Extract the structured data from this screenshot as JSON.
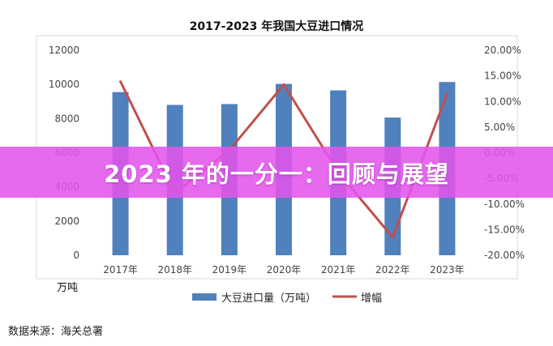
{
  "chart_data": {
    "type": "bar+line",
    "title": "2017-2023 年我国大豆进口情况",
    "categories": [
      "2017年",
      "2018年",
      "2019年",
      "2020年",
      "2021年",
      "2022年",
      "2023年"
    ],
    "series": [
      {
        "name": "大豆进口量（万吨）",
        "type": "bar",
        "axis": "left",
        "color": "#4F81BD",
        "values": [
          9550,
          8800,
          8850,
          10030,
          9650,
          8060,
          10140
        ]
      },
      {
        "name": "增幅",
        "type": "line",
        "axis": "right",
        "color": "#C0504D",
        "values": [
          13.9,
          -7.9,
          0.5,
          13.3,
          -3.8,
          -16.5,
          11.5
        ]
      }
    ],
    "y_left": {
      "min": 0,
      "max": 12000,
      "ticks": [
        0,
        2000,
        4000,
        6000,
        8000,
        10000,
        12000
      ],
      "unit_label": "万吨"
    },
    "y_right": {
      "min": -20,
      "max": 20,
      "ticks": [
        -20,
        -15,
        -10,
        -5,
        0,
        5,
        10,
        15,
        20
      ],
      "tick_labels": [
        "-20.00%",
        "-15.00%",
        "-10.00%",
        "-5.00%",
        "0.00%",
        "5.00%",
        "10.00%",
        "15.00%",
        "20.00%"
      ]
    },
    "grid": false,
    "legend": "bottom"
  },
  "source": "数据来源：海关总署",
  "banner": {
    "text": "2023 年的一分一：回顾与展望",
    "color": "#E254EC"
  }
}
